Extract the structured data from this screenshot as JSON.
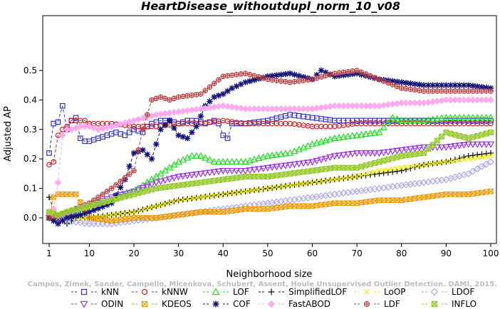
{
  "chart_data": {
    "type": "line",
    "title": "HeartDisease_withoutdupl_norm_10_v08",
    "xlabel": "Neighborhood size",
    "ylabel": "Adjusted AP",
    "xlim": [
      1,
      100
    ],
    "ylim": [
      -0.05,
      0.52
    ],
    "xticks": [
      "1",
      "10",
      "20",
      "30",
      "40",
      "50",
      "60",
      "70",
      "80",
      "90",
      "100"
    ],
    "yticks": [
      "0.0",
      "0.1",
      "0.2",
      "0.3",
      "0.4",
      "0.5"
    ],
    "grid": false,
    "legend_position": "bottom",
    "credit": "Campos, Zimek, Sander, Campello, Micenkova, Schubert, Assent, Houle Unsupervised Outlier Detection. DAMI, 2015.",
    "series": [
      {
        "name": "kNN",
        "color": "#3333cc",
        "marker": "square",
        "style": "dashed",
        "x": [
          1,
          2,
          3,
          4,
          5,
          6,
          7,
          8,
          9,
          10,
          12,
          14,
          16,
          18,
          20,
          21,
          22,
          23,
          24,
          26,
          28,
          30,
          32,
          34,
          36,
          38,
          39,
          40,
          41,
          42,
          45,
          50,
          55,
          60,
          65,
          70,
          75,
          80,
          85,
          90,
          95,
          100
        ],
        "y": [
          0.22,
          0.32,
          0.325,
          0.38,
          0.3,
          0.33,
          0.34,
          0.27,
          0.26,
          0.26,
          0.27,
          0.28,
          0.29,
          0.28,
          0.3,
          0.295,
          0.29,
          0.31,
          0.32,
          0.33,
          0.33,
          0.32,
          0.33,
          0.33,
          0.32,
          0.33,
          0.32,
          0.28,
          0.27,
          0.32,
          0.32,
          0.33,
          0.35,
          0.34,
          0.33,
          0.33,
          0.33,
          0.33,
          0.33,
          0.33,
          0.33,
          0.33
        ]
      },
      {
        "name": "kNNW",
        "color": "#cc2222",
        "marker": "circle",
        "style": "dashed",
        "x": [
          1,
          2,
          3,
          4,
          5,
          6,
          7,
          8,
          9,
          10,
          12,
          15,
          20,
          25,
          30,
          35,
          40,
          45,
          50,
          55,
          60,
          65,
          70,
          75,
          80,
          85,
          90,
          95,
          100
        ],
        "y": [
          0.18,
          0.19,
          0.28,
          0.3,
          0.31,
          0.33,
          0.33,
          0.33,
          0.33,
          0.32,
          0.32,
          0.32,
          0.31,
          0.31,
          0.32,
          0.32,
          0.33,
          0.32,
          0.32,
          0.32,
          0.31,
          0.31,
          0.32,
          0.32,
          0.32,
          0.32,
          0.32,
          0.32,
          0.32
        ]
      },
      {
        "name": "LOF",
        "color": "#22dd22",
        "marker": "triangle-up",
        "style": "dashed",
        "x": [
          1,
          3,
          5,
          8,
          10,
          15,
          20,
          25,
          30,
          33,
          35,
          38,
          40,
          45,
          50,
          55,
          60,
          65,
          70,
          75,
          78,
          80,
          85,
          90,
          95,
          100
        ],
        "y": [
          0.0,
          0.0,
          0.02,
          0.03,
          0.04,
          0.06,
          0.09,
          0.14,
          0.19,
          0.21,
          0.21,
          0.19,
          0.19,
          0.19,
          0.21,
          0.22,
          0.25,
          0.27,
          0.28,
          0.29,
          0.34,
          0.33,
          0.33,
          0.34,
          0.34,
          0.34
        ]
      },
      {
        "name": "SimplifiedLOF",
        "color": "#111111",
        "marker": "plus",
        "style": "dashed",
        "x": [
          1,
          2,
          3,
          4,
          5,
          7,
          10,
          15,
          20,
          25,
          30,
          35,
          40,
          45,
          50,
          55,
          60,
          65,
          70,
          75,
          80,
          85,
          90,
          95,
          100
        ],
        "y": [
          0.07,
          0.03,
          -0.01,
          -0.01,
          -0.02,
          0.0,
          0.0,
          0.01,
          0.02,
          0.04,
          0.06,
          0.07,
          0.08,
          0.09,
          0.1,
          0.11,
          0.12,
          0.13,
          0.14,
          0.15,
          0.16,
          0.18,
          0.19,
          0.21,
          0.22
        ]
      },
      {
        "name": "LoOP",
        "color": "#eeee00",
        "marker": "x",
        "style": "dashed",
        "x": [
          1,
          3,
          5,
          10,
          15,
          20,
          25,
          30,
          35,
          40,
          45,
          50,
          55,
          60,
          65,
          70,
          75,
          80,
          85,
          90,
          95,
          100
        ],
        "y": [
          0.0,
          0.0,
          0.0,
          0.0,
          0.01,
          0.02,
          0.04,
          0.06,
          0.07,
          0.08,
          0.09,
          0.1,
          0.11,
          0.12,
          0.13,
          0.14,
          0.16,
          0.17,
          0.18,
          0.19,
          0.2,
          0.21
        ]
      },
      {
        "name": "LDOF",
        "color": "#aaaaee",
        "marker": "diamond",
        "style": "dashed",
        "x": [
          1,
          5,
          10,
          15,
          20,
          25,
          30,
          35,
          40,
          45,
          50,
          55,
          60,
          65,
          70,
          75,
          80,
          85,
          90,
          95,
          100
        ],
        "y": [
          0.01,
          -0.01,
          -0.02,
          -0.02,
          -0.01,
          0.0,
          0.01,
          0.02,
          0.03,
          0.04,
          0.05,
          0.06,
          0.07,
          0.08,
          0.09,
          0.1,
          0.11,
          0.12,
          0.13,
          0.15,
          0.19
        ]
      },
      {
        "name": "ODIN",
        "color": "#9933ee",
        "marker": "triangle-down",
        "style": "dashed",
        "x": [
          1,
          3,
          5,
          8,
          10,
          15,
          20,
          25,
          30,
          35,
          40,
          45,
          50,
          55,
          60,
          65,
          70,
          75,
          80,
          85,
          90,
          95,
          100
        ],
        "y": [
          0.0,
          0.0,
          0.01,
          0.03,
          0.04,
          0.07,
          0.09,
          0.12,
          0.14,
          0.15,
          0.16,
          0.16,
          0.17,
          0.18,
          0.19,
          0.21,
          0.22,
          0.22,
          0.23,
          0.24,
          0.24,
          0.25,
          0.25
        ]
      },
      {
        "name": "KDEOS",
        "color": "#ee9900",
        "marker": "square-x",
        "style": "dashed",
        "x": [
          1,
          2,
          3,
          4,
          5,
          6,
          7,
          10,
          15,
          20,
          25,
          30,
          35,
          40,
          45,
          50,
          55,
          60,
          65,
          70,
          75,
          80,
          85,
          90,
          95,
          100
        ],
        "y": [
          0.0,
          0.07,
          0.08,
          0.08,
          0.08,
          0.08,
          0.08,
          0.0,
          -0.01,
          0.0,
          0.0,
          0.01,
          0.02,
          0.02,
          0.03,
          0.03,
          0.04,
          0.04,
          0.05,
          0.05,
          0.06,
          0.06,
          0.07,
          0.08,
          0.08,
          0.09
        ]
      },
      {
        "name": "COF",
        "color": "#111177",
        "marker": "star",
        "style": "dashed",
        "x": [
          1,
          3,
          5,
          8,
          10,
          15,
          18,
          20,
          22,
          24,
          26,
          28,
          30,
          32,
          34,
          36,
          38,
          40,
          42,
          45,
          50,
          55,
          60,
          62,
          65,
          70,
          75,
          80,
          85,
          90,
          95,
          100
        ],
        "y": [
          0.0,
          -0.02,
          0.0,
          0.01,
          0.02,
          0.05,
          0.13,
          0.22,
          0.23,
          0.2,
          0.3,
          0.33,
          0.28,
          0.27,
          0.31,
          0.38,
          0.41,
          0.42,
          0.44,
          0.46,
          0.48,
          0.49,
          0.47,
          0.5,
          0.48,
          0.49,
          0.47,
          0.46,
          0.45,
          0.45,
          0.45,
          0.44
        ]
      },
      {
        "name": "FastABOD",
        "color": "#ffaaee",
        "marker": "diamond-filled",
        "style": "dashed",
        "x": [
          1,
          2,
          3,
          4,
          5,
          6,
          8,
          10,
          12,
          15,
          20,
          25,
          30,
          35,
          40,
          45,
          50,
          55,
          60,
          65,
          70,
          75,
          80,
          85,
          90,
          95,
          100
        ],
        "y": [
          0.02,
          0.03,
          0.12,
          0.28,
          0.3,
          0.3,
          0.31,
          0.31,
          0.3,
          0.31,
          0.33,
          0.35,
          0.36,
          0.37,
          0.38,
          0.37,
          0.37,
          0.37,
          0.37,
          0.38,
          0.38,
          0.38,
          0.39,
          0.39,
          0.4,
          0.4,
          0.4
        ]
      },
      {
        "name": "LDF",
        "color": "#bb4444",
        "marker": "circle-plus",
        "style": "dashed",
        "x": [
          1,
          5,
          10,
          15,
          20,
          22,
          24,
          26,
          28,
          30,
          35,
          40,
          45,
          50,
          55,
          60,
          65,
          70,
          75,
          80,
          85,
          90,
          95,
          100
        ],
        "y": [
          0.0,
          0.02,
          0.05,
          0.1,
          0.16,
          0.3,
          0.4,
          0.41,
          0.4,
          0.41,
          0.42,
          0.48,
          0.49,
          0.47,
          0.46,
          0.47,
          0.49,
          0.5,
          0.47,
          0.44,
          0.43,
          0.43,
          0.43,
          0.43
        ]
      },
      {
        "name": "INFLO",
        "color": "#99cc33",
        "marker": "square-x-filled",
        "style": "dashed",
        "x": [
          1,
          3,
          5,
          10,
          15,
          20,
          25,
          30,
          35,
          40,
          45,
          50,
          55,
          60,
          65,
          70,
          75,
          80,
          85,
          90,
          95,
          100
        ],
        "y": [
          0.02,
          0.01,
          0.02,
          0.04,
          0.06,
          0.08,
          0.1,
          0.11,
          0.12,
          0.13,
          0.14,
          0.14,
          0.15,
          0.16,
          0.17,
          0.17,
          0.19,
          0.21,
          0.22,
          0.29,
          0.27,
          0.29
        ]
      }
    ]
  }
}
